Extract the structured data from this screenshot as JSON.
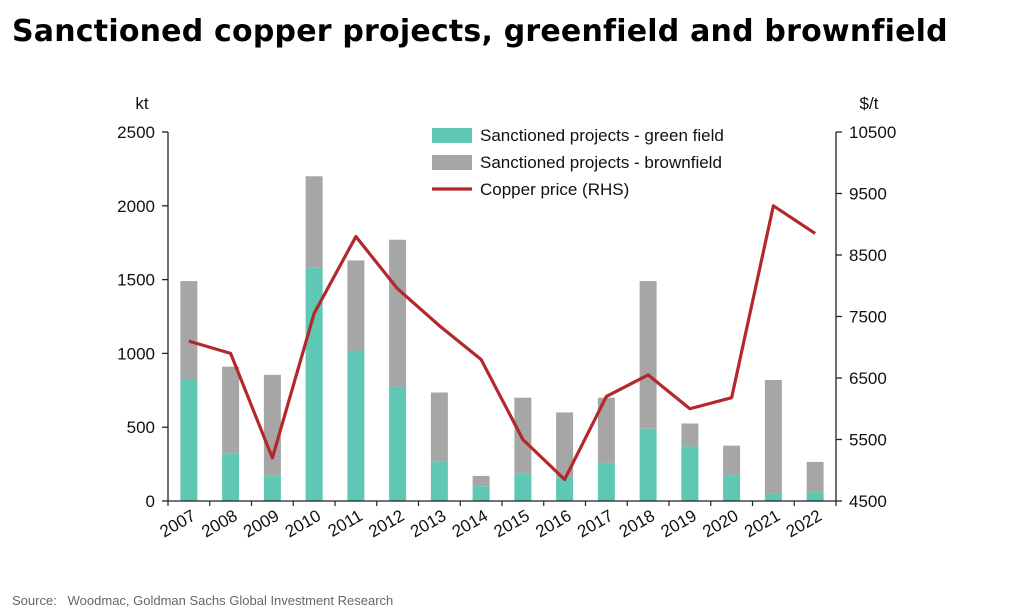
{
  "title": "Sanctioned copper projects, greenfield and brownfield",
  "source": "Source:   Woodmac, Goldman Sachs Global Investment Research",
  "colors": {
    "greenfield": "#5ec8b4",
    "brownfield": "#a6a6a6",
    "price": "#b3282d",
    "axis": "#222222"
  },
  "chart_data": {
    "type": "bar",
    "stacked": true,
    "categories": [
      "2007",
      "2008",
      "2009",
      "2010",
      "2011",
      "2012",
      "2013",
      "2014",
      "2015",
      "2016",
      "2017",
      "2018",
      "2019",
      "2020",
      "2021",
      "2022"
    ],
    "series": [
      {
        "name": "Sanctioned projects - green field",
        "axis": "left",
        "type": "bar",
        "values": [
          820,
          320,
          175,
          1580,
          1020,
          775,
          270,
          100,
          185,
          160,
          260,
          490,
          370,
          175,
          50,
          60
        ]
      },
      {
        "name": "Sanctioned projects - brownfield",
        "axis": "left",
        "type": "bar",
        "values": [
          670,
          590,
          680,
          620,
          610,
          995,
          465,
          70,
          515,
          440,
          440,
          1000,
          155,
          200,
          770,
          205
        ]
      },
      {
        "name": "Copper price (RHS)",
        "axis": "right",
        "type": "line",
        "values": [
          7100,
          6900,
          5200,
          7550,
          8800,
          7950,
          7350,
          6800,
          5500,
          4850,
          6200,
          6550,
          6000,
          6180,
          9300,
          8850
        ]
      }
    ],
    "left_axis": {
      "unit": "kt",
      "ylim": [
        0,
        2500
      ],
      "ticks": [
        "0",
        "500",
        "1000",
        "1500",
        "2000",
        "2500"
      ]
    },
    "right_axis": {
      "unit": "$/t",
      "ylim": [
        4500,
        10500
      ],
      "ticks": [
        "4500",
        "5500",
        "6500",
        "7500",
        "8500",
        "9500",
        "10500"
      ]
    },
    "grid": false,
    "legend_position": "top-center"
  }
}
